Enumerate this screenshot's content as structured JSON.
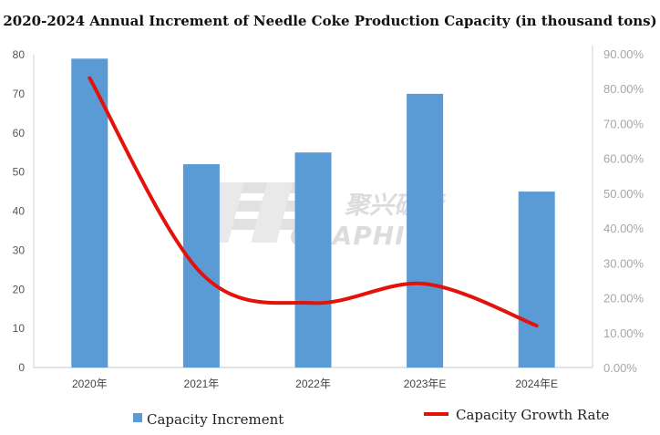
{
  "title": "2020-2024 Annual Increment of Needle Coke Production Capacity (in thousand tons)",
  "watermark": {
    "brand_cn": "聚兴碳素",
    "brand_en": "GRAPHITE"
  },
  "colors": {
    "bar": "#5b9bd5",
    "line": "#e3120b"
  },
  "chart_data": {
    "type": "bar",
    "categories": [
      "2020年",
      "2021年",
      "2022年",
      "2023年E",
      "2024年E"
    ],
    "series": [
      {
        "name": "Capacity Increment",
        "type": "bar",
        "axis": "left",
        "values": [
          79,
          52,
          55,
          70,
          45
        ]
      },
      {
        "name": "Capacity Growth Rate",
        "type": "line",
        "axis": "right",
        "smooth": true,
        "values": [
          0.83,
          0.27,
          0.185,
          0.24,
          0.12
        ]
      }
    ],
    "y_left": {
      "min": 0,
      "max": 80,
      "ticks": [
        "0",
        "10",
        "20",
        "30",
        "40",
        "50",
        "60",
        "70",
        "80"
      ]
    },
    "y_right": {
      "min": 0,
      "max": 0.9,
      "ticks": [
        "0.00%",
        "10.00%",
        "20.00%",
        "30.00%",
        "40.00%",
        "50.00%",
        "60.00%",
        "70.00%",
        "80.00%",
        "90.00%"
      ]
    },
    "grid": false,
    "legend": {
      "position": "bottom"
    }
  }
}
